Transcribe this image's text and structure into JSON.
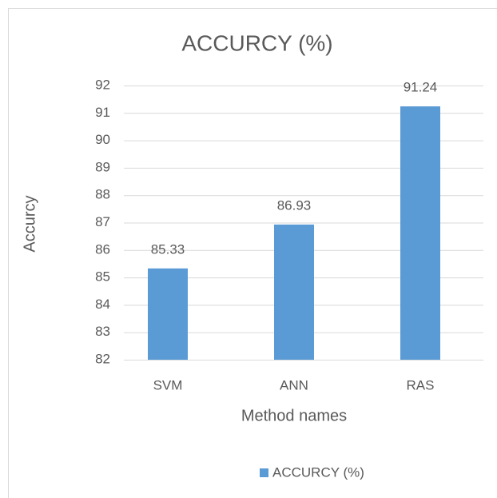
{
  "chart_data": {
    "type": "bar",
    "title": "ACCURCY (%)",
    "x_label": "Method names",
    "y_label": "Accurcy",
    "categories": [
      "SVM",
      "ANN",
      "RAS"
    ],
    "series": [
      {
        "name": "ACCURCY (%)",
        "color": "#5b9bd5",
        "values": [
          85.33,
          86.93,
          91.24
        ]
      }
    ],
    "ylim": [
      82,
      92
    ],
    "yticks": [
      82,
      83,
      84,
      85,
      86,
      87,
      88,
      89,
      90,
      91,
      92
    ],
    "grid": true,
    "legend": "bottom"
  }
}
